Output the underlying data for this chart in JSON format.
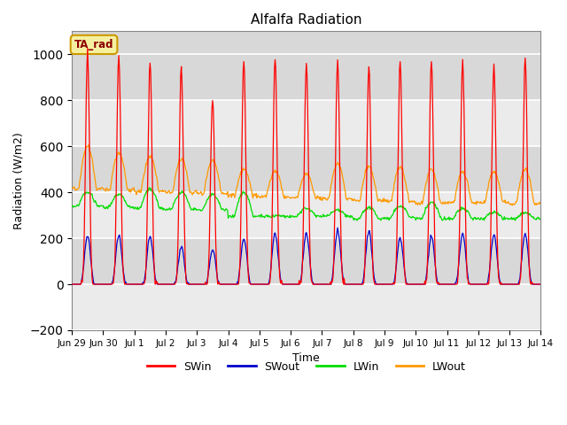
{
  "title": "Alfalfa Radiation",
  "ylabel": "Radiation (W/m2)",
  "xlabel": "Time",
  "annotation": "TA_rad",
  "ylim": [
    -200,
    1100
  ],
  "yticks": [
    -200,
    0,
    200,
    400,
    600,
    800,
    1000
  ],
  "series": [
    "SWin",
    "SWout",
    "LWin",
    "LWout"
  ],
  "colors": [
    "#ff0000",
    "#0000cc",
    "#00dd00",
    "#ff9900"
  ],
  "bg_color": "#d8d8d8",
  "n_days": 16,
  "dt_minutes": 30,
  "tick_labels": [
    "Jun 29",
    "Jun 30",
    "Jul 1",
    "Jul 2",
    "Jul 3",
    "Jul 4",
    "Jul 5",
    "Jul 6",
    "Jul 7",
    "Jul 8",
    "Jul 9",
    "Jul 10",
    "Jul 11",
    "Jul 12",
    "Jul 13",
    "Jul 14"
  ],
  "SWin_day_peaks": [
    1000,
    1000,
    970,
    950,
    820,
    970,
    980,
    960,
    975,
    945,
    970,
    970,
    975,
    955,
    980,
    0
  ],
  "SWout_day_peaks": [
    210,
    215,
    210,
    160,
    150,
    200,
    220,
    220,
    230,
    230,
    200,
    210,
    220,
    215,
    220,
    0
  ],
  "LWout_day_peaks": [
    600,
    570,
    555,
    545,
    540,
    500,
    490,
    480,
    525,
    510,
    510,
    500,
    490,
    490,
    500,
    0
  ],
  "LWout_day_base": [
    415,
    410,
    405,
    400,
    395,
    385,
    380,
    375,
    370,
    365,
    360,
    355,
    355,
    355,
    350,
    350
  ],
  "LWin_day_peaks": [
    400,
    390,
    415,
    400,
    390,
    400,
    300,
    330,
    325,
    335,
    340,
    355,
    330,
    315,
    310,
    300
  ],
  "LWin_day_base": [
    340,
    335,
    330,
    325,
    325,
    295,
    295,
    295,
    295,
    285,
    290,
    285,
    285,
    285,
    285,
    285
  ]
}
